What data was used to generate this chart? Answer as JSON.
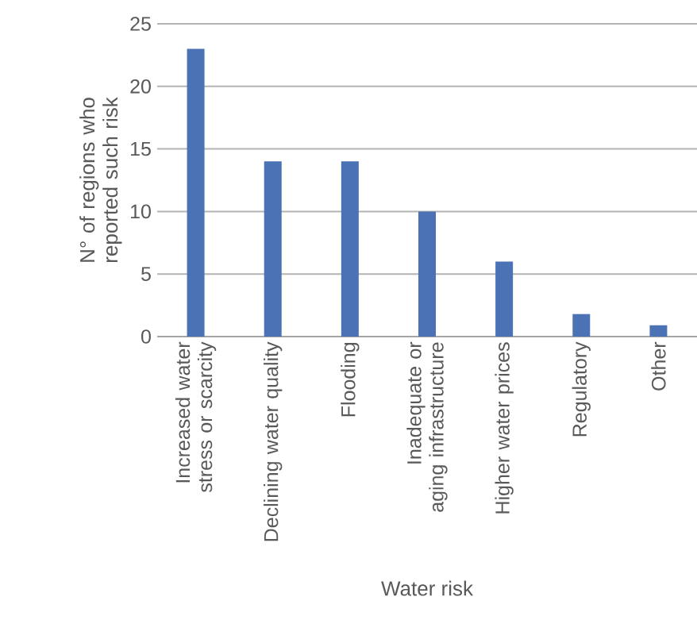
{
  "chart_data": {
    "type": "bar",
    "categories": [
      "Increased water stress or scarcity",
      "Declining water quality",
      "Flooding",
      "Inadequate or aging infrastructure",
      "Higher water prices",
      "Regulatory",
      "Other"
    ],
    "values": [
      23,
      14,
      14,
      10,
      6,
      1.8,
      0.9
    ],
    "color": "#4a72b4",
    "ylim": [
      0,
      25
    ],
    "yticks": [
      0,
      5,
      10,
      15,
      20,
      25
    ],
    "grid": "y",
    "xlabel": "Water risk",
    "ylabel": "N° of regions who reported such risk"
  }
}
